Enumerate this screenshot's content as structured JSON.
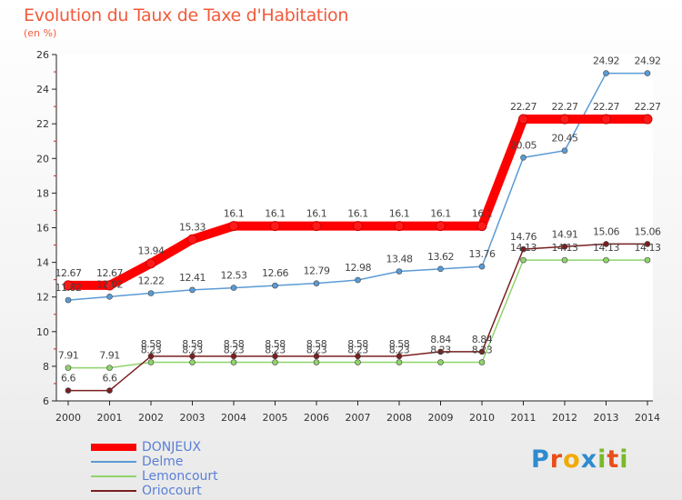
{
  "header": {
    "title": "Evolution du Taux de Taxe d'Habitation",
    "subtitle": "(en %)"
  },
  "logo": {
    "text": "Proxiti",
    "colors": [
      "#2e8bcf",
      "#e94e1b",
      "#f2a900",
      "#2e8bcf",
      "#7ab929",
      "#e94e1b",
      "#7ab929"
    ]
  },
  "chart_data": {
    "type": "line",
    "title": "Evolution du Taux de Taxe d'Habitation",
    "ylabel": "(en %)",
    "xlabel": "",
    "ylim": [
      6,
      26
    ],
    "yticks": [
      6,
      8,
      10,
      12,
      14,
      16,
      18,
      20,
      22,
      24,
      26
    ],
    "grid": false,
    "legend_position": "bottom-left",
    "categories": [
      "2000",
      "2001",
      "2002",
      "2003",
      "2004",
      "2005",
      "2006",
      "2007",
      "2008",
      "2009",
      "2010",
      "2011",
      "2012",
      "2013",
      "2014"
    ],
    "series": [
      {
        "name": "DONJEUX",
        "color": "#ff0000",
        "values": [
          12.67,
          12.67,
          13.94,
          15.33,
          16.1,
          16.1,
          16.1,
          16.1,
          16.1,
          16.1,
          16.1,
          22.27,
          22.27,
          22.27,
          22.27
        ]
      },
      {
        "name": "Delme",
        "color": "#5b9bd5",
        "values": [
          11.82,
          12.02,
          12.22,
          12.41,
          12.53,
          12.66,
          12.79,
          12.98,
          13.48,
          13.62,
          13.76,
          20.05,
          20.45,
          24.92,
          24.92
        ]
      },
      {
        "name": "Lemoncourt",
        "color": "#8fd46a",
        "values": [
          7.91,
          7.91,
          8.23,
          8.23,
          8.23,
          8.23,
          8.23,
          8.23,
          8.23,
          8.23,
          8.23,
          14.13,
          14.13,
          14.13,
          14.13
        ]
      },
      {
        "name": "Oriocourt",
        "color": "#7a1f1f",
        "values": [
          6.6,
          6.6,
          8.58,
          8.58,
          8.58,
          8.58,
          8.58,
          8.58,
          8.58,
          8.84,
          8.84,
          14.76,
          14.91,
          15.06,
          15.06
        ]
      }
    ]
  }
}
